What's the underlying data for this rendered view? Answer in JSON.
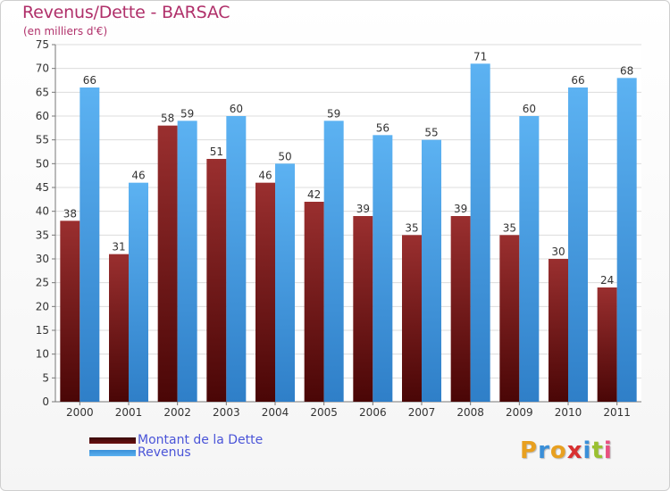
{
  "header": {
    "title": "Revenus/Dette - BARSAC",
    "subtitle": "(en milliers d'€)"
  },
  "logo": {
    "text": "Proxiti",
    "letter_colors": [
      "#e8a020",
      "#3a8fd8",
      "#e8a020",
      "#d83030",
      "#3a8fd8",
      "#9ac030",
      "#e85080"
    ]
  },
  "chart_data": {
    "type": "bar",
    "title": "Revenus/Dette - BARSAC",
    "subtitle": "(en milliers d'€)",
    "categories": [
      "2000",
      "2001",
      "2002",
      "2003",
      "2004",
      "2005",
      "2006",
      "2007",
      "2008",
      "2009",
      "2010",
      "2011"
    ],
    "series": [
      {
        "name": "Montant de la Dette",
        "color": "#8b1f1f",
        "values": [
          38,
          31,
          58,
          51,
          46,
          42,
          39,
          35,
          39,
          35,
          30,
          24
        ]
      },
      {
        "name": "Revenus",
        "color": "#4aa3e8",
        "values": [
          66,
          46,
          59,
          60,
          50,
          59,
          56,
          55,
          71,
          60,
          66,
          68
        ]
      }
    ],
    "ylim": [
      0,
      75
    ],
    "yticks": [
      0,
      5,
      10,
      15,
      20,
      25,
      30,
      35,
      40,
      45,
      50,
      55,
      60,
      65,
      70,
      75
    ],
    "grid": true,
    "legend_position": "bottom-left"
  }
}
